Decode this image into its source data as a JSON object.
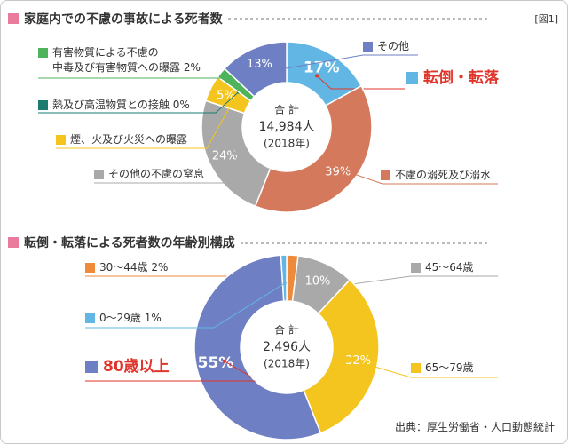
{
  "figure_label": "[図1]",
  "source": "出典：厚生労働省・人口動態統計",
  "chart_data": [
    {
      "type": "pie",
      "title": "家庭内での不慮の事故による死者数",
      "center_label": [
        "合 計",
        "14,984人",
        "(2018年)"
      ],
      "categories": [
        "転倒・転落",
        "不慮の溺死及び溺水",
        "その他の不慮の窒息",
        "煙、火及び火災への曝露",
        "熱及び高温物質との接触",
        "有害物質による不慮の\n中毒及び有害物質への曝露",
        "その他"
      ],
      "values": [
        17,
        39,
        24,
        5,
        0,
        2,
        13
      ],
      "value_labels": [
        "17%",
        "39%",
        "24%",
        "5%",
        "0%",
        "2%",
        "13%"
      ],
      "colors": [
        "#62b6e3",
        "#d4795c",
        "#a9a9a9",
        "#f4c51e",
        "#1b7b6f",
        "#4fb35b",
        "#6f7fc3"
      ],
      "highlight": 0
    },
    {
      "type": "pie",
      "title": "転倒・転落による死者数の年齢別構成",
      "center_label": [
        "合 計",
        "2,496人",
        "(2018年)"
      ],
      "categories": [
        "30～44歳",
        "45～64歳",
        "65～79歳",
        "80歳以上",
        "0～29歳"
      ],
      "values": [
        2,
        10,
        32,
        55,
        1
      ],
      "value_labels": [
        "2%",
        "10%",
        "32%",
        "55%",
        "1%"
      ],
      "colors": [
        "#f08a3b",
        "#a9a9a9",
        "#f4c51e",
        "#6f7fc3",
        "#62b6e3"
      ],
      "highlight": 3
    }
  ]
}
